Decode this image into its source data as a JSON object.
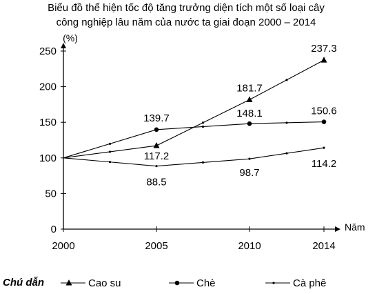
{
  "chart_data": {
    "type": "line",
    "title_lines": [
      "Biểu đồ thể hiện tốc độ tăng trưởng diện tích một số loại cây",
      "công nghiệp lâu năm của nước ta giai đoạn 2000 – 2014"
    ],
    "xlabel": "Năm",
    "ylabel": "(%)",
    "x": [
      2000,
      2005,
      2010,
      2014
    ],
    "ylim": [
      0,
      250
    ],
    "yticks": [
      0,
      50,
      100,
      150,
      200,
      250
    ],
    "grid": false,
    "legend": {
      "title": "Chú dẫn",
      "position": "bottom"
    },
    "series": [
      {
        "name": "Cao su",
        "marker": "triangle",
        "values": [
          100,
          117.2,
          181.7,
          237.3
        ]
      },
      {
        "name": "Chè",
        "marker": "circle",
        "values": [
          100,
          139.7,
          148.1,
          150.6
        ]
      },
      {
        "name": "Cà phê",
        "marker": "dot",
        "values": [
          100,
          88.5,
          98.7,
          114.2
        ]
      }
    ],
    "data_labels": [
      {
        "text": "117.2",
        "series": 0,
        "index": 1
      },
      {
        "text": "181.7",
        "series": 0,
        "index": 2
      },
      {
        "text": "237.3",
        "series": 0,
        "index": 3
      },
      {
        "text": "139.7",
        "series": 1,
        "index": 1
      },
      {
        "text": "148.1",
        "series": 1,
        "index": 2
      },
      {
        "text": "150.6",
        "series": 1,
        "index": 3
      },
      {
        "text": "88.5",
        "series": 2,
        "index": 1
      },
      {
        "text": "98.7",
        "series": 2,
        "index": 2
      },
      {
        "text": "114.2",
        "series": 2,
        "index": 3
      }
    ]
  }
}
